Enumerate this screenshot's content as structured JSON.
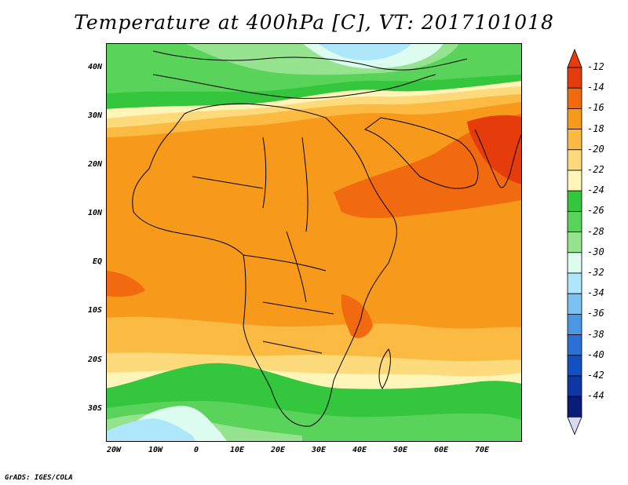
{
  "title": "Temperature at 400hPa [C], VT: 2017101018",
  "credit": "GrADS: IGES/COLA",
  "map": {
    "lat_labels": [
      "40N",
      "30N",
      "20N",
      "10N",
      "EQ",
      "10S",
      "20S",
      "30S"
    ],
    "lon_labels": [
      "20W",
      "10W",
      "0",
      "10E",
      "20E",
      "30E",
      "40E",
      "50E",
      "60E",
      "70E"
    ]
  },
  "colorbar": {
    "labels": [
      "-12",
      "-14",
      "-16",
      "-18",
      "-20",
      "-22",
      "-24",
      "-26",
      "-28",
      "-30",
      "-32",
      "-34",
      "-36",
      "-38",
      "-40",
      "-42",
      "-44"
    ],
    "colors": [
      "#e63b0a",
      "#f26a10",
      "#f79a1c",
      "#fbba42",
      "#fddb7c",
      "#fff5b8",
      "#34c63c",
      "#5ad35a",
      "#96e38f",
      "#dcfcf0",
      "#aee6fb",
      "#7ac0f0",
      "#4a98e4",
      "#2a70d6",
      "#1550c2",
      "#0e36a4",
      "#0a1c78"
    ],
    "top_cap": "#e63b0a",
    "bottom_cap": "#dcd8f8"
  }
}
